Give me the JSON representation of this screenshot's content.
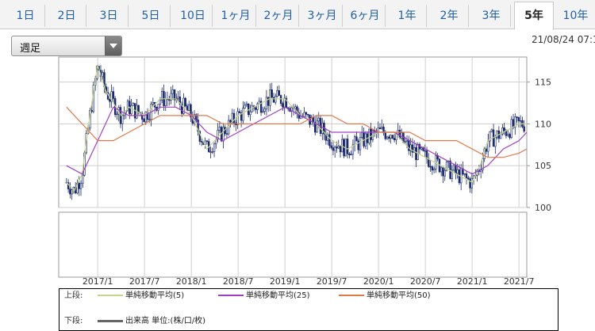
{
  "tabs": [
    {
      "label": "1日"
    },
    {
      "label": "2日"
    },
    {
      "label": "3日"
    },
    {
      "label": "5日"
    },
    {
      "label": "10日"
    },
    {
      "label": "1ヶ月"
    },
    {
      "label": "2ヶ月"
    },
    {
      "label": "3ヶ月"
    },
    {
      "label": "6ヶ月"
    },
    {
      "label": "1年"
    },
    {
      "label": "2年"
    },
    {
      "label": "3年"
    },
    {
      "label": "5年"
    },
    {
      "label": "10年"
    }
  ],
  "active_tab": "5年",
  "period_select": {
    "value": "週足"
  },
  "timestamp": "21/08/24 07:1",
  "legend": {
    "upper_label": "上段:",
    "lower_label": "下段:",
    "items": [
      {
        "label": "単純移動平均(5)",
        "color": "#c8d48a"
      },
      {
        "label": "単純移動平均(25)",
        "color": "#a040c8"
      },
      {
        "label": "単純移動平均(50)",
        "color": "#e07848"
      }
    ],
    "volume_label": "出来高 単位:(株/口/枚)",
    "volume_color": "#666666"
  },
  "chart_data": {
    "type": "line",
    "title": "",
    "xlabel": "",
    "ylabel": "",
    "x_ticks": [
      "2017/1",
      "2017/7",
      "2018/1",
      "2018/7",
      "2019/1",
      "2019/7",
      "2020/1",
      "2020/7",
      "2021/1",
      "2021/7"
    ],
    "y_ticks": [
      100,
      105,
      110,
      115
    ],
    "ylim": [
      100,
      118
    ],
    "xlim": [
      "2016/8",
      "2021/8"
    ],
    "grid": true,
    "candle_color": "#1a2a6c",
    "series": [
      {
        "name": "単純移動平均(5)",
        "color": "#c8d48a",
        "x": [
          "2016/9",
          "2016/10",
          "2016/11",
          "2016/12",
          "2017/1",
          "2017/2",
          "2017/4",
          "2017/5",
          "2017/7",
          "2017/9",
          "2017/11",
          "2018/1",
          "2018/3",
          "2018/5",
          "2018/7",
          "2018/9",
          "2018/11",
          "2019/1",
          "2019/3",
          "2019/5",
          "2019/7",
          "2019/9",
          "2019/11",
          "2020/1",
          "2020/3",
          "2020/5",
          "2020/7",
          "2020/9",
          "2020/11",
          "2021/1",
          "2021/2",
          "2021/3",
          "2021/5",
          "2021/7",
          "2021/8"
        ],
        "values": [
          103,
          102,
          104,
          111,
          117,
          114,
          111,
          112,
          111,
          113,
          113,
          111,
          107,
          109,
          111,
          112,
          113,
          113,
          111,
          110,
          108,
          107,
          108,
          109,
          109,
          107,
          106,
          105,
          104,
          103,
          105,
          108,
          109,
          110,
          110
        ]
      },
      {
        "name": "単純移動平均(25)",
        "color": "#a040c8",
        "x": [
          "2016/9",
          "2016/11",
          "2017/1",
          "2017/3",
          "2017/5",
          "2017/7",
          "2017/9",
          "2017/11",
          "2018/1",
          "2018/3",
          "2018/5",
          "2018/7",
          "2018/9",
          "2018/11",
          "2019/1",
          "2019/3",
          "2019/5",
          "2019/7",
          "2019/9",
          "2019/11",
          "2020/1",
          "2020/3",
          "2020/5",
          "2020/7",
          "2020/9",
          "2020/11",
          "2021/1",
          "2021/3",
          "2021/5",
          "2021/7",
          "2021/8"
        ],
        "values": [
          105,
          104,
          108,
          112,
          111,
          111,
          112,
          112,
          111,
          109,
          108,
          109,
          110,
          111,
          112,
          111,
          110,
          109,
          109,
          109,
          109,
          109,
          108,
          107,
          106,
          105,
          104,
          105,
          107,
          108,
          109
        ]
      },
      {
        "name": "単純移動平均(50)",
        "color": "#e07848",
        "x": [
          "2016/9",
          "2016/11",
          "2017/1",
          "2017/3",
          "2017/5",
          "2017/7",
          "2017/9",
          "2017/11",
          "2018/1",
          "2018/3",
          "2018/5",
          "2018/7",
          "2018/9",
          "2018/11",
          "2019/1",
          "2019/3",
          "2019/5",
          "2019/7",
          "2019/9",
          "2019/11",
          "2020/1",
          "2020/3",
          "2020/5",
          "2020/7",
          "2020/9",
          "2020/11",
          "2021/1",
          "2021/3",
          "2021/5",
          "2021/7",
          "2021/8"
        ],
        "values": [
          112,
          110,
          108,
          108,
          109,
          110,
          111,
          111,
          111,
          111,
          110,
          110,
          110,
          110,
          110,
          110,
          111,
          111,
          110,
          110,
          109,
          109,
          109,
          108,
          108,
          108,
          107,
          106,
          106,
          106.5,
          107
        ]
      }
    ]
  }
}
